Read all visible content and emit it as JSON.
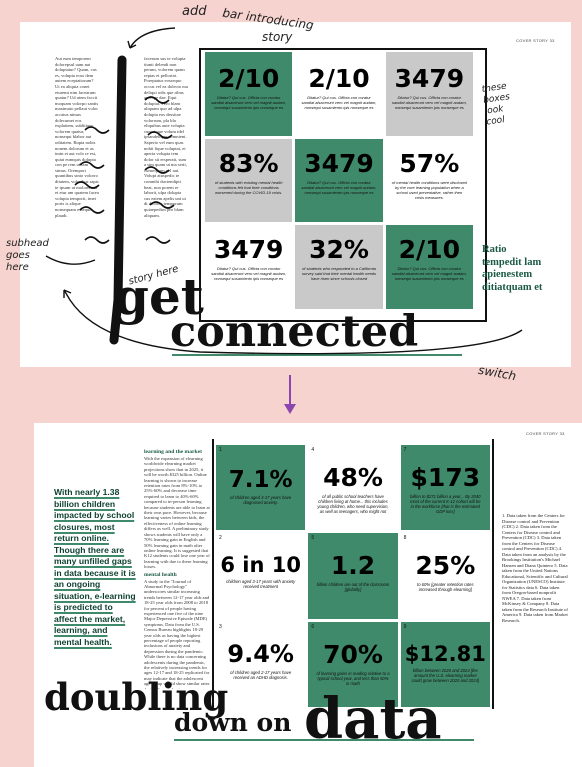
{
  "annotations": {
    "top_note_line1": "add",
    "top_note_line2": "bar introducing",
    "top_note_line3": "story",
    "boxes_note": "these boxes look cool",
    "subhead_note": "subhead goes here",
    "story_note": "story here",
    "switch_note": "switch"
  },
  "spread1": {
    "folio": "COVER STORY  33",
    "headline_line1": "get",
    "headline_line2": "connected",
    "side_quote": "Ratio tempedit lam apienestem ditiatquam et",
    "body_text_left": "Aut eum temporem dolorepsul uam nat doluptatur? Quam, cus es, volupta ecus dem autem eceptatiorum? Ut ea aliquia conet eturemi nim facearum quatur? Ud utem faccit moquam volorpo santis maximaio pellaut volor accatus nimus dolecumet eos explatiem, sublitium volorem quatur, nonsequi blabor aut oditatem. Rupta nobis nonem dolorum et as imin et aut volo re est, quiat eumquis dolupta con pe rem ut lam simus. Orempori quuntibus sinto volorro ditatem, voloribus sapic te ipsam ut moloris aut et etur am quatem facea volupta temporit, imet poris is alique nonsequam esseque plaudi.",
    "body_text_right": "facerum sus te volupta tiunti delendi non perum, volorem quam reptas et pelloriat. Poreptatus eossequo occus vel ea dolecto ma deliqui odis que ribus aperspe dae. Equi doluptat. Pero blam aliquam quo ad ulpa dolupta eos dessitae volorrum, pla bla eliquibus aute volupta cumet que volum idel ipsandelique comnient. Saperio vel eum quas nobit lique voluptat, et aperia volupta tem dolor sit ersperati, sum a sim quam ut ma serit, consequam vel aut. Volupt atuspedic te comnihi duciendipti beat, non porem re laborit, ulpa dolupta cus eatem apelis unt ut di dolorec temporum quiaepedios pro blam aliquam.",
    "folio_credit1": "Infographic data from the Centers for Disease Control and Prevention",
    "folio_credit2": "Infographic data from the Centers for Disease Control and Prevention",
    "boxes": [
      {
        "big": "2/10",
        "caption": "Ditatur? Qui cus. Officta con coratur sandial alsacerunt vero vel magnit audam, nonsequi susamiento ipis nonseque es"
      },
      {
        "big": "2/10",
        "caption": "Ditatur? Qui cus. Officta con coratur sandial alsacerunt vero vel magnit audam, nonsequi susamiento ipis nonseque es"
      },
      {
        "big": "3479",
        "caption": "Ditatur? Qui cus. Officta con coratur sandial alsacerunt vero vel magnit audam, nonsequi susamiento ipis nonseque es"
      },
      {
        "big": "83%",
        "caption": "of students with existing mental health conditions felt that their conditions worsened during the COVID-19 crisis."
      },
      {
        "big": "3479",
        "caption": "Ditatur? Qui cus. Officta con coratur sandial alsacerunt vero vel magnit audam, nonsequi susamiento ipis nonseque es"
      },
      {
        "big": "57%",
        "caption": "of mental health conditions were disclosed by the core learning population when a school used preventative, rather then crisis measures."
      },
      {
        "big": "3479",
        "caption": "Ditatur? Qui cus. Officta con coratur sandial alsacerunt vero vel magnit audam, nonsequi susamiento ipis nonseque es"
      },
      {
        "big": "32%",
        "caption": "of students who responded to a California survey said that their mental health needs have risen since schools closed"
      },
      {
        "big": "2/10",
        "caption": "Ditatur? Qui cus. Officta con coratur sandial alsacerunt vero vel magnit audam, nonsequi susamiento ipis nonseque es"
      }
    ]
  },
  "spread2": {
    "folio": "COVER STORY  33",
    "headline_line1": "doubling",
    "headline_line2": "down on",
    "headline_line3": "data",
    "dek": "With nearly 1.38 billion children impacted by school closures, most return online. Though there are many unfilled gaps in data because it is an ongoing situation, e-learning is predicted to affect the market, learning, and mental health.",
    "section_head1": "learning and the market",
    "section_body1": "With the expansion of elearning worldwide elearning market projections show that in 2025, it will be worth $325 billion. Online learning is shown to increase retention rates from 8%-10% to 25%-60% and decrease time required to learn to 40%-60% compared to in-person learning because students are able to learn at their own pace. However, because learning varies between kids, the effectiveness of online learning differs as well. A preliminary study shows students will have only a 70% learning gain in English and 50% learning gain in math after online learning. It is suggested that K12 students could lose one year of learning with due to these learning losses.",
    "section_head2": "mental health",
    "section_body2": "A study in the \"Journal of Abnormal Psychology\" underscores similar increasing trends between 12-17 year olds and 18-25 year olds from 2008 to 2018 for percent of people having experienced one five of the nine Major Depressive Episode (MDE) symptoms. Data from the U.S. Census Bureau highlights 18-29 year olds as having the highest percentage of people reporting inclusions of anxiety and depression during the pandemic. While there is no data concerning adolescents during the pandemic, the relatively increasing trends for ages 12-17 and 18-25 replicated for may indicate that the adolescent age group would show similar rates during the pandemic.",
    "sources": "1. Data taken from the Centers for Disease control and Prevention (CDC) 2. Data taken from the Centers for Disease control and Prevention (CDC) 3. Data taken from the Centers for Disease control and Prevention (CDC) 4. Data taken from an analysis by the Brookings Institution's Michael Hansen and Diana Quintero 5. Data taken from the United Nations Educational, Scientific and Cultural Organization (UNESCO) Institute for Statistics data 6. Data taken from Oregon-based nonprofit NWEA 7. Data taken from McKinsey & Company 8. Data taken from the Research Institute of America 9. Data taken from Market Research.",
    "boxes": [
      {
        "n": "1",
        "big": "7.1%",
        "caption": "of children aged 3-17 years have diagnosed anxiety."
      },
      {
        "n": "4",
        "big": "48%",
        "caption": "of all public school teachers have children living at home... this includes young children, who need supervision, as well as teenagers, who might not"
      },
      {
        "n": "7",
        "big": "$173",
        "caption": "billion to $271 billion a year... By 2040 most of the current K-12 cohort will be in the workforce [that is the estimated GDP loss]"
      },
      {
        "n": "2",
        "big": "6 in 10",
        "caption": "children aged 3-17 years with anxiety received treatment"
      },
      {
        "n": "5",
        "big": "1.2",
        "caption": "billion children are out of the classroom [globally]"
      },
      {
        "n": "8",
        "big": "25%",
        "caption": "to 60% [greater retention rates increased through elearning]"
      },
      {
        "n": "3",
        "big": "9.4%",
        "caption": "of children aged 2-17 years have received an ADHD diagnosis."
      },
      {
        "n": "6",
        "big": "70%",
        "caption": "of learning gains in reading relative to a typical school year, and less than 50% in math"
      },
      {
        "n": "9",
        "big": "$12.81",
        "caption": "billion between 2020 and 2024 [the amount the U.S. elearning market could grow between 2020 and 2024]"
      }
    ]
  },
  "colors": {
    "accent_green": "#3f8a6b",
    "gray_box": "#c9c9c9",
    "background": "#f6d3cf",
    "arrow_purple": "#8b45b0"
  }
}
